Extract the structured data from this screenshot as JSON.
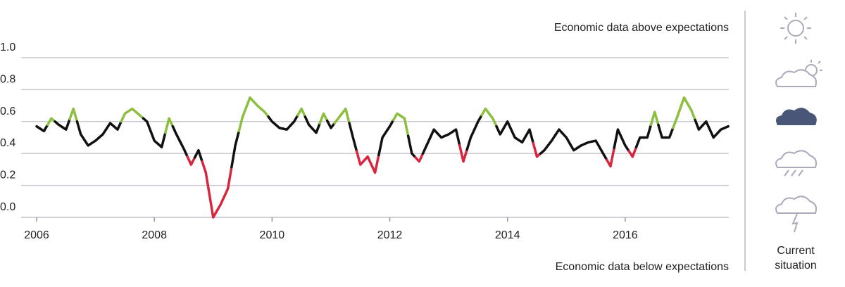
{
  "chart_data": {
    "type": "line",
    "annotations": {
      "above": {
        "text": "Economic data above expectations",
        "color": "#8cbf3f"
      },
      "below": {
        "text": "Economic data below expectations",
        "color": "#d9263f"
      }
    },
    "side_label": "Current situation",
    "x": [
      2006,
      2006.125,
      2006.25,
      2006.375,
      2006.5,
      2006.625,
      2006.75,
      2006.875,
      2007,
      2007.125,
      2007.25,
      2007.375,
      2007.5,
      2007.625,
      2007.75,
      2007.875,
      2008,
      2008.125,
      2008.25,
      2008.375,
      2008.5,
      2008.625,
      2008.75,
      2008.875,
      2009,
      2009.125,
      2009.25,
      2009.375,
      2009.5,
      2009.625,
      2009.75,
      2009.875,
      2010,
      2010.125,
      2010.25,
      2010.375,
      2010.5,
      2010.625,
      2010.75,
      2010.875,
      2011,
      2011.125,
      2011.25,
      2011.375,
      2011.5,
      2011.625,
      2011.75,
      2011.875,
      2012,
      2012.125,
      2012.25,
      2012.375,
      2012.5,
      2012.625,
      2012.75,
      2012.875,
      2013,
      2013.125,
      2013.25,
      2013.375,
      2013.5,
      2013.625,
      2013.75,
      2013.875,
      2014,
      2014.125,
      2014.25,
      2014.375,
      2014.5,
      2014.625,
      2014.75,
      2014.875,
      2015,
      2015.125,
      2015.25,
      2015.375,
      2015.5,
      2015.625,
      2015.75,
      2015.875,
      2016,
      2016.125,
      2016.25,
      2016.375,
      2016.5,
      2016.625,
      2016.75,
      2016.875,
      2017,
      2017.125,
      2017.25,
      2017.375,
      2017.5,
      2017.625,
      2017.75
    ],
    "series": [
      {
        "values": [
          0.57,
          0.54,
          0.62,
          0.58,
          0.55,
          0.68,
          0.52,
          0.45,
          0.48,
          0.52,
          0.59,
          0.55,
          0.65,
          0.68,
          0.64,
          0.6,
          0.48,
          0.44,
          0.62,
          0.52,
          0.43,
          0.33,
          0.42,
          0.28,
          0.0,
          0.08,
          0.18,
          0.45,
          0.63,
          0.75,
          0.7,
          0.66,
          0.6,
          0.56,
          0.55,
          0.6,
          0.68,
          0.58,
          0.53,
          0.65,
          0.56,
          0.62,
          0.68,
          0.5,
          0.33,
          0.38,
          0.28,
          0.5,
          0.57,
          0.65,
          0.62,
          0.4,
          0.35,
          0.45,
          0.55,
          0.5,
          0.52,
          0.55,
          0.35,
          0.5,
          0.6,
          0.68,
          0.62,
          0.52,
          0.6,
          0.5,
          0.47,
          0.55,
          0.38,
          0.42,
          0.48,
          0.55,
          0.5,
          0.42,
          0.45,
          0.47,
          0.48,
          0.4,
          0.32,
          0.55,
          0.45,
          0.38,
          0.5,
          0.5,
          0.66,
          0.5,
          0.5,
          0.62,
          0.75,
          0.67,
          0.55,
          0.6,
          0.5,
          0.55,
          0.57
        ],
        "colors": [
          "#111111",
          "#111111",
          "#8cbf3f",
          "#111111",
          "#111111",
          "#8cbf3f",
          "#111111",
          "#111111",
          "#111111",
          "#111111",
          "#111111",
          "#111111",
          "#8cbf3f",
          "#8cbf3f",
          "#8cbf3f",
          "#111111",
          "#111111",
          "#111111",
          "#8cbf3f",
          "#111111",
          "#111111",
          "#d9263f",
          "#111111",
          "#d9263f",
          "#d9263f",
          "#d9263f",
          "#d9263f",
          "#111111",
          "#8cbf3f",
          "#8cbf3f",
          "#8cbf3f",
          "#8cbf3f",
          "#111111",
          "#111111",
          "#111111",
          "#111111",
          "#8cbf3f",
          "#111111",
          "#111111",
          "#8cbf3f",
          "#111111",
          "#8cbf3f",
          "#8cbf3f",
          "#111111",
          "#d9263f",
          "#d9263f",
          "#d9263f",
          "#111111",
          "#111111",
          "#8cbf3f",
          "#8cbf3f",
          "#111111",
          "#d9263f",
          "#111111",
          "#111111",
          "#111111",
          "#111111",
          "#111111",
          "#d9263f",
          "#111111",
          "#111111",
          "#8cbf3f",
          "#8cbf3f",
          "#111111",
          "#111111",
          "#111111",
          "#111111",
          "#111111",
          "#d9263f",
          "#111111",
          "#111111",
          "#111111",
          "#111111",
          "#111111",
          "#111111",
          "#111111",
          "#111111",
          "#111111",
          "#d9263f",
          "#111111",
          "#111111",
          "#d9263f",
          "#111111",
          "#111111",
          "#8cbf3f",
          "#111111",
          "#111111",
          "#8cbf3f",
          "#8cbf3f",
          "#8cbf3f",
          "#111111",
          "#111111",
          "#111111",
          "#111111",
          "#111111"
        ]
      }
    ],
    "xlim": [
      2006,
      2017.76
    ],
    "xticks": [
      2006,
      2008,
      2010,
      2012,
      2014,
      2016
    ],
    "ylim": [
      0,
      1
    ],
    "yticks": [
      {
        "value": 0,
        "label": "0.0"
      },
      {
        "value": 0.2,
        "label": "0.2"
      },
      {
        "value": 0.4,
        "label": "0.4"
      },
      {
        "value": 0.6,
        "label": "0.6"
      },
      {
        "value": 0.8,
        "label": "0.8"
      },
      {
        "value": 1,
        "label": "1.0"
      }
    ],
    "grid": true
  }
}
